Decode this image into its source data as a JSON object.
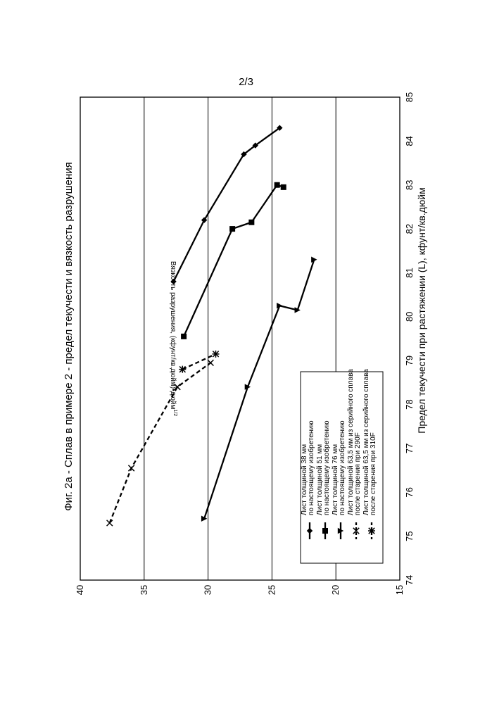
{
  "page_label": "2/3",
  "chart_data": {
    "type": "line",
    "title": "Фиг. 2а - Сплав в примере 2 - предел текучести и вязкость разрушения",
    "xlabel": "Предел текучести при растяжении (L), кфунт/кв.дюйм",
    "ylabel_main": "Вязкость разрушения, (кфунт/кв.дюйм)•дюйм",
    "ylabel_sup": "1/2",
    "xlim": [
      74,
      85
    ],
    "ylim": [
      15,
      40
    ],
    "x_ticks": [
      "74",
      "75",
      "76",
      "77",
      "78",
      "79",
      "80",
      "81",
      "82",
      "83",
      "84",
      "85"
    ],
    "y_ticks": [
      "15",
      "20",
      "25",
      "30",
      "35",
      "40"
    ],
    "grid": "horizontal",
    "orientation": "rotated-90-ccw",
    "legend_position": "lower-right",
    "series": [
      {
        "name": "Лист толщиной 38 мм\nпо настоящему изобретению",
        "marker": "diamond",
        "dash": "solid",
        "color": "#000000",
        "points": [
          [
            80.8,
            32.7
          ],
          [
            82.2,
            30.3
          ],
          [
            83.7,
            27.2
          ],
          [
            83.9,
            26.3
          ],
          [
            84.3,
            24.4
          ]
        ]
      },
      {
        "name": "Лист толщиной 51 мм\nпо настоящему изобретению",
        "marker": "square",
        "dash": "solid",
        "color": "#000000",
        "points": [
          [
            79.55,
            31.9
          ],
          [
            82.0,
            28.1
          ],
          [
            82.15,
            26.6
          ],
          [
            83.0,
            24.6
          ],
          [
            82.95,
            24.1
          ]
        ]
      },
      {
        "name": "Лист толщиной 76 мм\nпо настоящему изобретению",
        "marker": "triangle",
        "dash": "solid",
        "color": "#000000",
        "points": [
          [
            75.4,
            30.3
          ],
          [
            78.4,
            26.9
          ],
          [
            80.25,
            24.4
          ],
          [
            80.15,
            23.0
          ],
          [
            81.3,
            21.7
          ]
        ]
      },
      {
        "name": "Лист толщиной 63,5 мм из серийного сплава\nпосле старения при 290F",
        "marker": "x",
        "dash": "dashed",
        "color": "#000000",
        "points": [
          [
            75.3,
            37.7
          ],
          [
            76.55,
            36.0
          ],
          [
            78.4,
            32.4
          ],
          [
            78.95,
            29.8
          ]
        ]
      },
      {
        "name": "Лист толщиной 63,5 мм из серийного сплава\nпосле старения при 310F",
        "marker": "asterisk",
        "dash": "dashed",
        "color": "#000000",
        "points": [
          [
            78.8,
            32.0
          ],
          [
            79.15,
            29.4
          ]
        ]
      }
    ]
  }
}
